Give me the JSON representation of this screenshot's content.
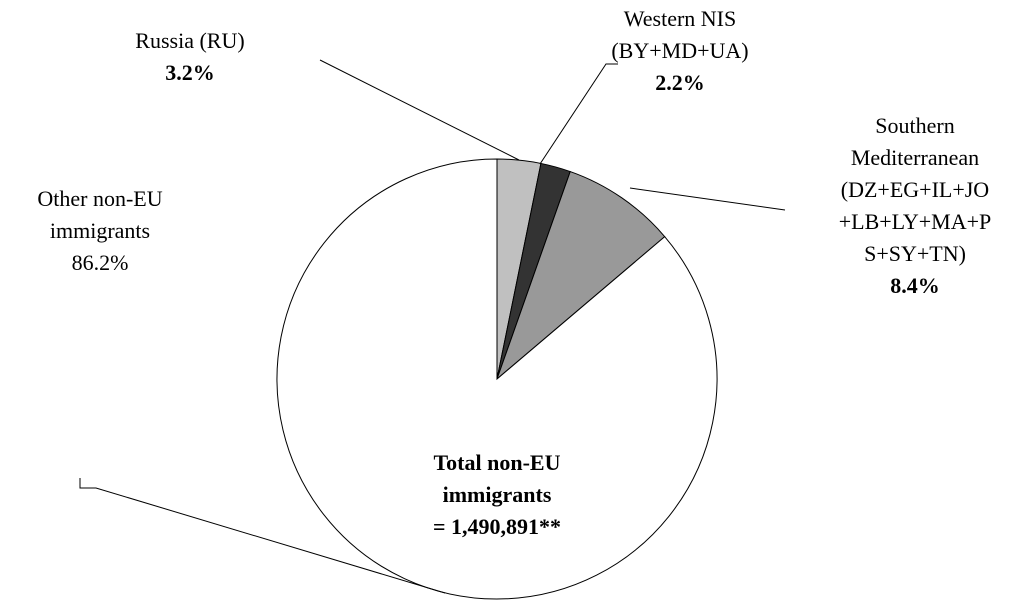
{
  "chart_data": {
    "type": "pie",
    "categories": [
      "Russia  (RU)",
      "Western NIS\n(BY+MD+UA)",
      "Southern\nMediterranean\n(DZ+EG+IL+JO\n+LB+LY+MA+P\nS+SY+TN)",
      "Other non-EU\nimmigrants"
    ],
    "values": [
      3.2,
      2.2,
      8.4,
      86.2
    ],
    "value_labels": [
      "3.2%",
      "2.2%",
      "8.4%",
      "86.2%"
    ],
    "colors": [
      "#c0c0c0",
      "#333333",
      "#999999",
      "#ffffff"
    ],
    "annotation": "Total non-EU\nimmigrants\n= 1,490,891**"
  }
}
